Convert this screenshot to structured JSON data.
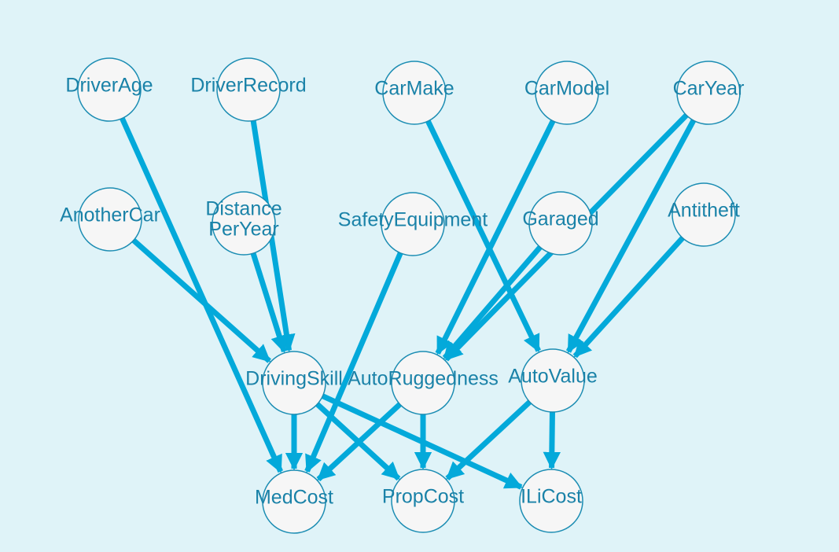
{
  "colors": {
    "background": "#dff3f8",
    "edge": "#03a9da",
    "node_fill": "#f6f6f6",
    "node_stroke": "#1c8db3",
    "label": "#1a82a8"
  },
  "nodes": [
    {
      "id": "DriverAge",
      "label": [
        "DriverAge"
      ]
    },
    {
      "id": "DriverRecord",
      "label": [
        "DriverRecord"
      ]
    },
    {
      "id": "CarMake",
      "label": [
        "CarMake"
      ]
    },
    {
      "id": "CarModel",
      "label": [
        "CarModel"
      ]
    },
    {
      "id": "CarYear",
      "label": [
        "CarYear"
      ]
    },
    {
      "id": "AnotherCar",
      "label": [
        "AnotherCar"
      ]
    },
    {
      "id": "DistancePerYear",
      "label": [
        "Distance",
        "PerYear"
      ]
    },
    {
      "id": "SafetyEquipment",
      "label": [
        "SafetyEquipment"
      ]
    },
    {
      "id": "Garaged",
      "label": [
        "Garaged"
      ]
    },
    {
      "id": "Antitheft",
      "label": [
        "Antitheft"
      ]
    },
    {
      "id": "DrivingSkill",
      "label": [
        "DrivingSkill"
      ]
    },
    {
      "id": "AutoRuggedness",
      "label": [
        "AutoRuggedness"
      ]
    },
    {
      "id": "AutoValue",
      "label": [
        "AutoValue"
      ]
    },
    {
      "id": "MedCost",
      "label": [
        "MedCost"
      ]
    },
    {
      "id": "PropCost",
      "label": [
        "PropCost"
      ]
    },
    {
      "id": "ILiCost",
      "label": [
        "ILiCost"
      ]
    }
  ],
  "edges": [
    [
      "DriverAge",
      "MedCost"
    ],
    [
      "DriverRecord",
      "DrivingSkill"
    ],
    [
      "CarMake",
      "AutoValue"
    ],
    [
      "CarModel",
      "AutoRuggedness"
    ],
    [
      "CarYear",
      "AutoRuggedness"
    ],
    [
      "CarYear",
      "AutoValue"
    ],
    [
      "AnotherCar",
      "DrivingSkill"
    ],
    [
      "DistancePerYear",
      "DrivingSkill"
    ],
    [
      "SafetyEquipment",
      "MedCost"
    ],
    [
      "Garaged",
      "AutoRuggedness"
    ],
    [
      "Antitheft",
      "AutoValue"
    ],
    [
      "DrivingSkill",
      "MedCost"
    ],
    [
      "DrivingSkill",
      "PropCost"
    ],
    [
      "DrivingSkill",
      "ILiCost"
    ],
    [
      "AutoRuggedness",
      "MedCost"
    ],
    [
      "AutoRuggedness",
      "PropCost"
    ],
    [
      "AutoValue",
      "PropCost"
    ],
    [
      "AutoValue",
      "ILiCost"
    ]
  ]
}
